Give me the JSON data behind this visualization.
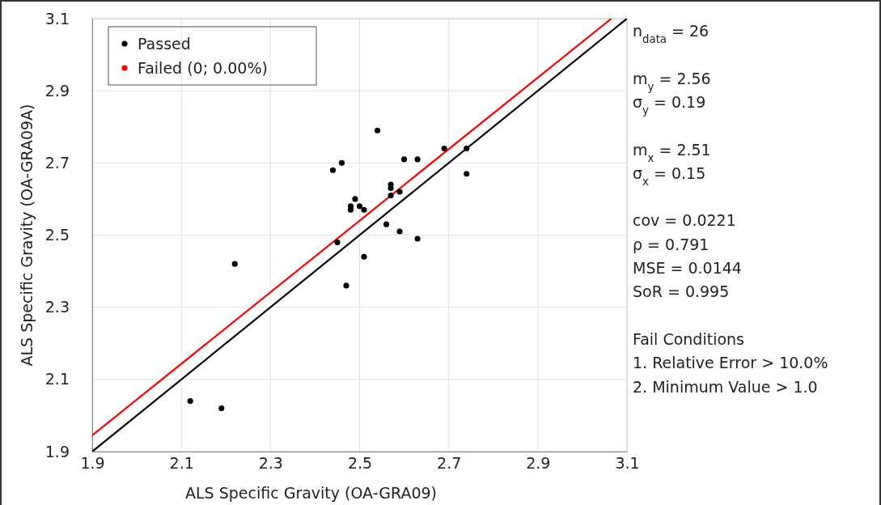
{
  "chart_data": {
    "type": "scatter",
    "xlabel": "ALS Specific Gravity (OA-GRA09)",
    "ylabel": "ALS Specific Gravity (OA-GRA09A)",
    "xlim": [
      1.9,
      3.1
    ],
    "ylim": [
      1.9,
      3.1
    ],
    "xticks": [
      1.9,
      2.1,
      2.3,
      2.5,
      2.7,
      2.9,
      3.1
    ],
    "yticks": [
      1.9,
      2.1,
      2.3,
      2.5,
      2.7,
      2.9,
      3.1
    ],
    "grid": true,
    "legend": "top left",
    "marker": "circle",
    "series": [
      {
        "name": "Passed",
        "color": "#000000",
        "x": [
          2.12,
          2.19,
          2.22,
          2.44,
          2.45,
          2.46,
          2.47,
          2.48,
          2.48,
          2.49,
          2.5,
          2.51,
          2.51,
          2.54,
          2.56,
          2.57,
          2.57,
          2.57,
          2.59,
          2.59,
          2.6,
          2.63,
          2.63,
          2.69,
          2.74,
          2.74
        ],
        "values": [
          2.04,
          2.02,
          2.42,
          2.68,
          2.48,
          2.7,
          2.36,
          2.57,
          2.58,
          2.6,
          2.58,
          2.57,
          2.44,
          2.79,
          2.53,
          2.64,
          2.63,
          2.61,
          2.62,
          2.51,
          2.71,
          2.71,
          2.49,
          2.74,
          2.74,
          2.67
        ]
      },
      {
        "name": "Failed (0; 0.00%)",
        "color": "#ff0000"
      },
      {
        "type": "line",
        "marker": "none",
        "color": "#000000",
        "x": [
          1.9,
          3.1
        ],
        "values": [
          1.9,
          3.1
        ]
      },
      {
        "type": "line",
        "marker": "none",
        "color": "#ff0000",
        "x": [
          1.9,
          3.065
        ],
        "values": [
          1.945,
          3.1
        ]
      }
    ],
    "annotations": [
      "n$_{data}$ = 26",
      "m$_{y}$ = 2.56",
      "σ$_{y}$ = 0.19",
      "m$_{x}$ = 2.51",
      "σ$_{x}$ = 0.15",
      "cov = 0.0221",
      "ρ = 0.791",
      "MSE = 0.0144",
      "SoR = 0.995",
      "Fail Conditions",
      "1. Relative Error > 10.0%",
      "2. Minimum Value > 1.0"
    ]
  }
}
